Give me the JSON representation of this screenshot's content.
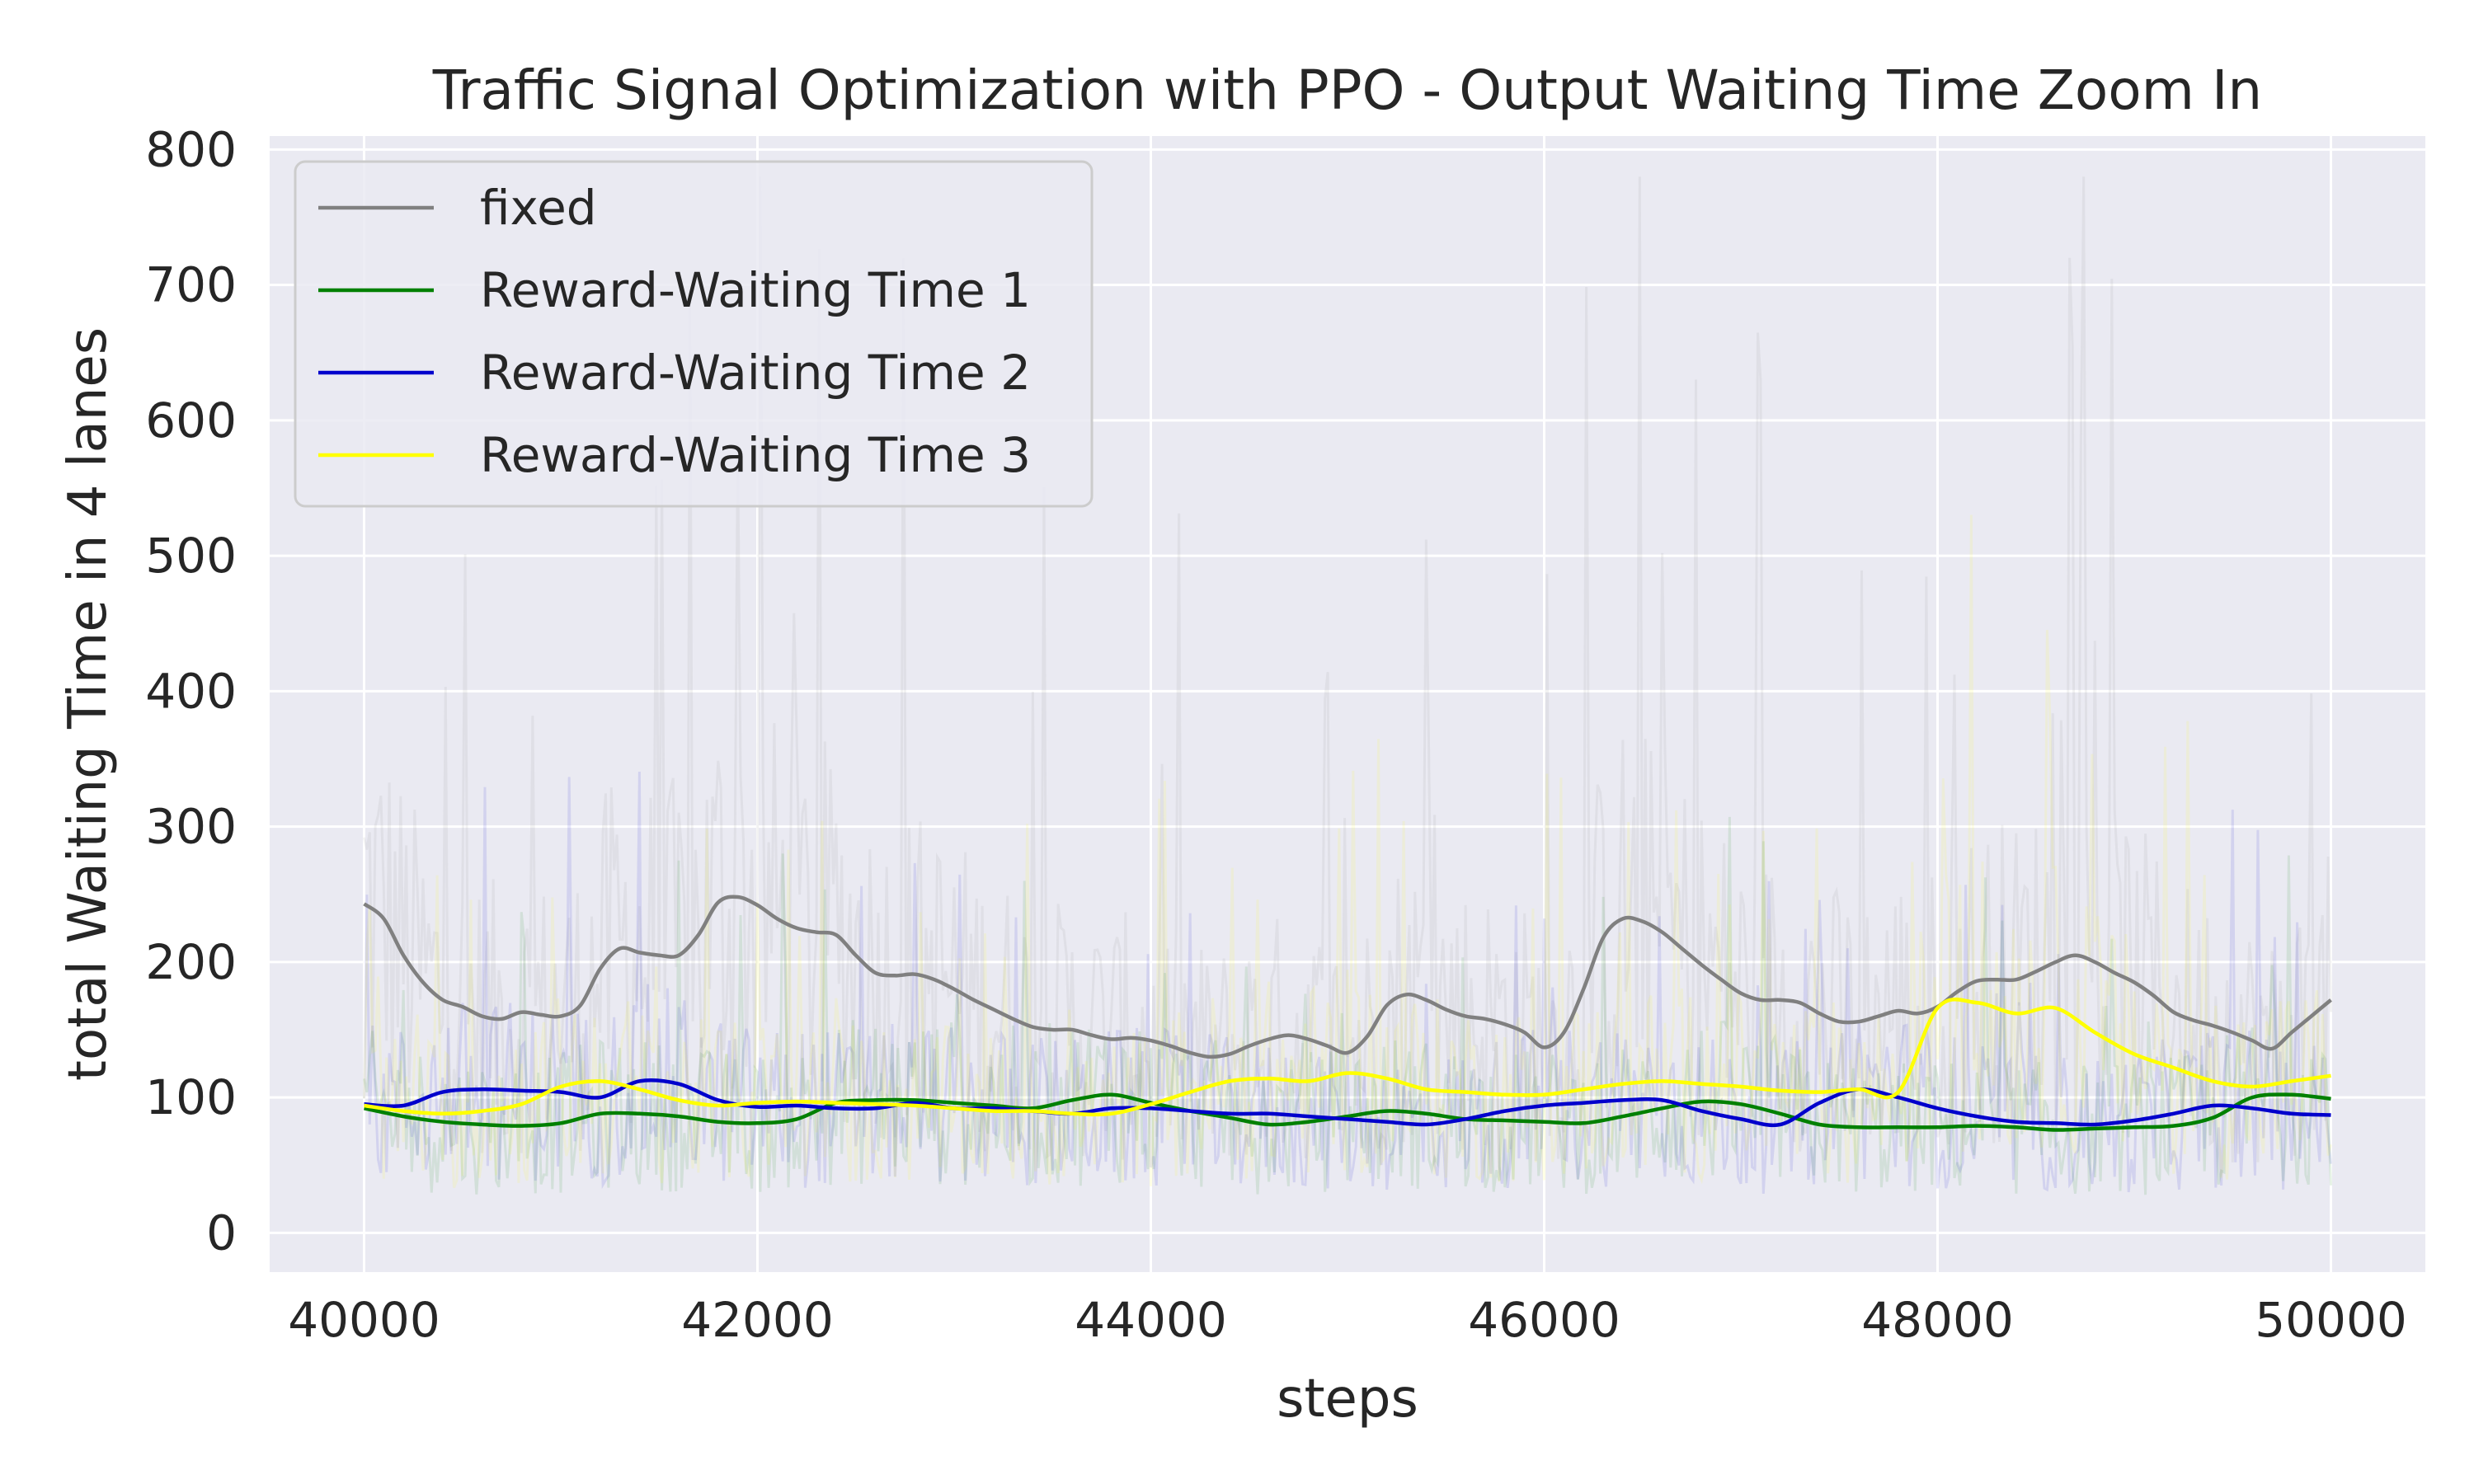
{
  "chart_data": {
    "type": "line",
    "title": "Traffic Signal Optimization with PPO - Output Waiting Time Zoom In",
    "xlabel": "steps",
    "ylabel": "total Waiting Time in 4 lanes",
    "xlim": [
      39520,
      50480
    ],
    "ylim": [
      -29,
      810
    ],
    "xticks": [
      40000,
      42000,
      44000,
      46000,
      48000,
      50000
    ],
    "yticks": [
      0,
      100,
      200,
      300,
      400,
      500,
      600,
      700,
      800
    ],
    "grid": true,
    "legend_position": "upper-left",
    "background_color": "#eaeaf2",
    "grid_color": "#ffffff",
    "series": [
      {
        "name": "fixed",
        "color": "#808080",
        "x": [
          40000,
          40100,
          40200,
          40300,
          40400,
          40500,
          40600,
          40700,
          40800,
          40900,
          41000,
          41100,
          41200,
          41300,
          41400,
          41500,
          41600,
          41700,
          41800,
          41900,
          42000,
          42100,
          42200,
          42300,
          42400,
          42500,
          42600,
          42700,
          42800,
          42900,
          43000,
          43100,
          43200,
          43300,
          43400,
          43500,
          43600,
          43700,
          43800,
          43900,
          44000,
          44100,
          44200,
          44300,
          44400,
          44500,
          44600,
          44700,
          44800,
          44900,
          45000,
          45100,
          45200,
          45300,
          45400,
          45500,
          45600,
          45700,
          45800,
          45900,
          46000,
          46100,
          46200,
          46300,
          46400,
          46500,
          46600,
          46700,
          46800,
          46900,
          47000,
          47100,
          47200,
          47300,
          47400,
          47500,
          47600,
          47700,
          47800,
          47900,
          48000,
          48100,
          48200,
          48300,
          48400,
          48500,
          48600,
          48700,
          48800,
          48900,
          49000,
          49100,
          49200,
          49300,
          49400,
          49500,
          49600,
          49700,
          49800,
          49900,
          50000
        ],
        "values": [
          243,
          232,
          205,
          185,
          172,
          167,
          160,
          158,
          163,
          161,
          160,
          168,
          195,
          210,
          207,
          205,
          205,
          220,
          244,
          248,
          242,
          232,
          225,
          222,
          220,
          205,
          192,
          190,
          191,
          187,
          180,
          172,
          165,
          158,
          152,
          150,
          150,
          146,
          143,
          144,
          142,
          138,
          133,
          130,
          132,
          138,
          143,
          146,
          143,
          138,
          133,
          145,
          168,
          176,
          172,
          165,
          160,
          158,
          154,
          148,
          137,
          148,
          180,
          218,
          232,
          230,
          222,
          210,
          198,
          187,
          177,
          172,
          172,
          170,
          162,
          156,
          156,
          160,
          164,
          162,
          167,
          178,
          186,
          187,
          187,
          193,
          200,
          205,
          200,
          192,
          185,
          175,
          163,
          157,
          153,
          148,
          142,
          136,
          148,
          160,
          172
        ]
      },
      {
        "name": "Reward-Waiting Time 1",
        "color": "#008000",
        "x": [
          40000,
          40200,
          40400,
          40600,
          40800,
          41000,
          41200,
          41400,
          41600,
          41800,
          42000,
          42200,
          42400,
          42600,
          42800,
          43000,
          43200,
          43400,
          43600,
          43800,
          44000,
          44200,
          44400,
          44600,
          44800,
          45000,
          45200,
          45400,
          45600,
          45800,
          46000,
          46200,
          46400,
          46600,
          46800,
          47000,
          47200,
          47400,
          47600,
          47800,
          48000,
          48200,
          48400,
          48600,
          48800,
          49000,
          49200,
          49400,
          49600,
          49800,
          50000
        ],
        "values": [
          92,
          86,
          82,
          80,
          79,
          81,
          88,
          88,
          86,
          82,
          81,
          84,
          96,
          98,
          98,
          96,
          94,
          92,
          98,
          102,
          96,
          90,
          85,
          80,
          82,
          86,
          90,
          88,
          84,
          83,
          82,
          81,
          86,
          92,
          97,
          95,
          88,
          80,
          78,
          78,
          78,
          79,
          78,
          76,
          77,
          78,
          79,
          85,
          100,
          102,
          99
        ]
      },
      {
        "name": "Reward-Waiting Time 2",
        "color": "#0000cc",
        "x": [
          40000,
          40200,
          40400,
          40600,
          40800,
          41000,
          41200,
          41400,
          41600,
          41800,
          42000,
          42200,
          42400,
          42600,
          42800,
          43000,
          43200,
          43400,
          43600,
          43800,
          44000,
          44200,
          44400,
          44600,
          44800,
          45000,
          45200,
          45400,
          45600,
          45800,
          46000,
          46200,
          46400,
          46600,
          46800,
          47000,
          47200,
          47400,
          47600,
          47800,
          48000,
          48200,
          48400,
          48600,
          48800,
          49000,
          49200,
          49400,
          49600,
          49800,
          50000
        ],
        "values": [
          95,
          94,
          104,
          106,
          105,
          104,
          100,
          112,
          110,
          98,
          93,
          94,
          92,
          92,
          96,
          92,
          92,
          90,
          88,
          92,
          92,
          90,
          88,
          88,
          86,
          84,
          82,
          80,
          84,
          90,
          94,
          96,
          98,
          98,
          90,
          84,
          80,
          96,
          106,
          100,
          92,
          86,
          82,
          81,
          80,
          83,
          88,
          94,
          92,
          88,
          87
        ]
      },
      {
        "name": "Reward-Waiting Time 3",
        "color": "#ffff00",
        "x": [
          40000,
          40200,
          40400,
          40600,
          40800,
          41000,
          41200,
          41400,
          41600,
          41800,
          42000,
          42200,
          42400,
          42600,
          42800,
          43000,
          43200,
          43400,
          43600,
          43800,
          44000,
          44200,
          44400,
          44600,
          44800,
          45000,
          45200,
          45400,
          45600,
          45800,
          46000,
          46200,
          46400,
          46600,
          46800,
          47000,
          47200,
          47400,
          47600,
          47800,
          48000,
          48200,
          48400,
          48600,
          48800,
          49000,
          49200,
          49400,
          49600,
          49800,
          50000
        ],
        "values": [
          94,
          90,
          88,
          90,
          95,
          108,
          112,
          106,
          98,
          94,
          96,
          97,
          96,
          95,
          94,
          92,
          90,
          90,
          88,
          88,
          95,
          104,
          112,
          114,
          112,
          118,
          114,
          106,
          104,
          102,
          102,
          106,
          110,
          112,
          110,
          108,
          105,
          104,
          106,
          104,
          166,
          170,
          162,
          166,
          148,
          132,
          122,
          112,
          108,
          112,
          116
        ]
      }
    ]
  }
}
